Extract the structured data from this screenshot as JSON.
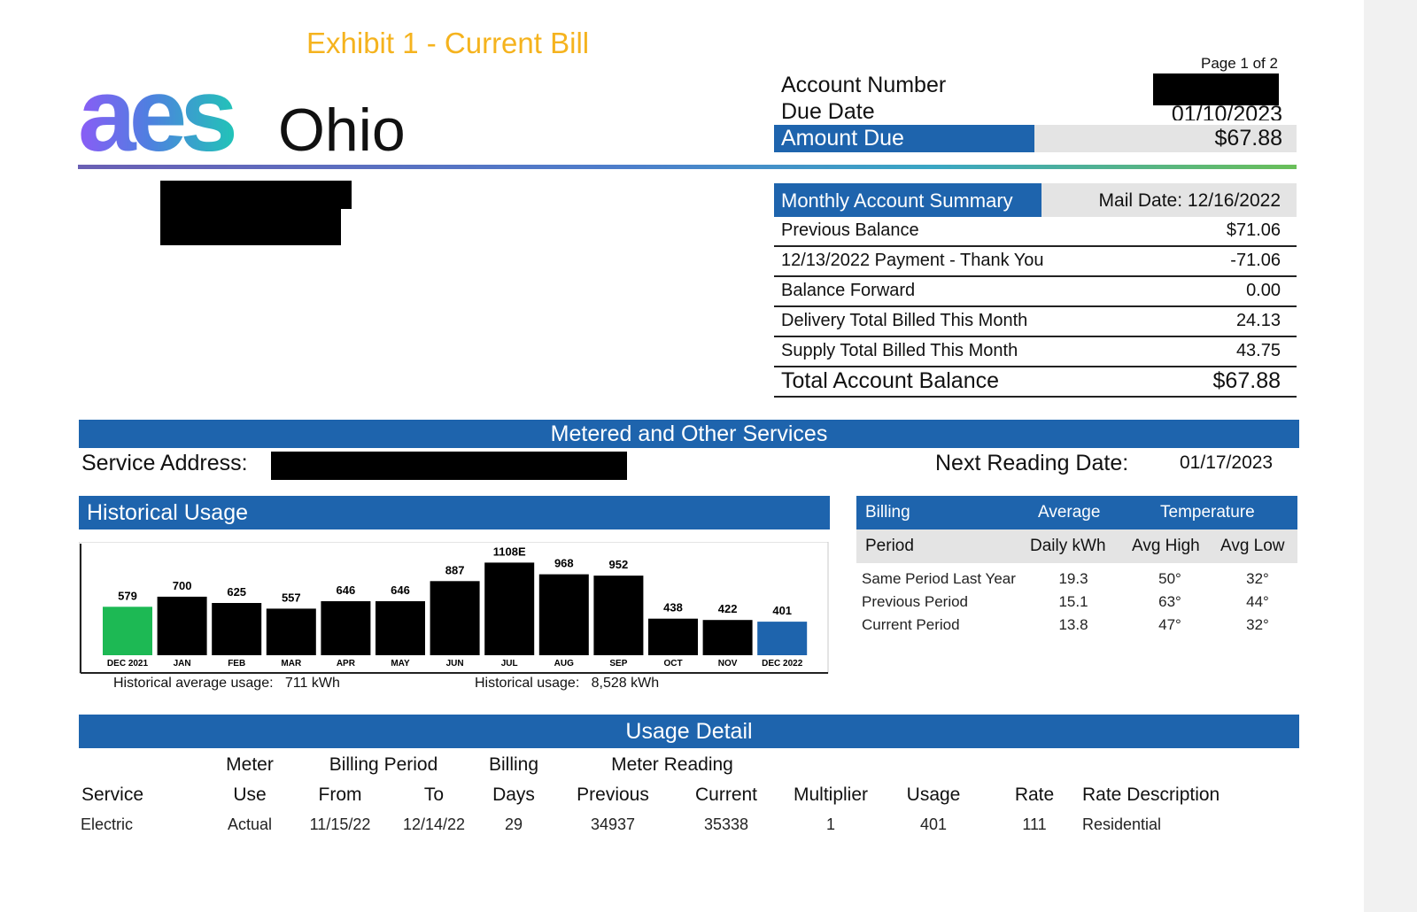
{
  "exhibit_title": "Exhibit 1 - Current Bill",
  "logo": {
    "mark": "aes",
    "region": "Ohio"
  },
  "page_info": "Page 1 of 2",
  "account": {
    "number_label": "Account Number",
    "due_date_label": "Due Date",
    "due_date_value": "01/10/2023",
    "amount_due_label": "Amount Due",
    "amount_due_value": "$67.88"
  },
  "summary": {
    "title": "Monthly Account Summary",
    "mail_date": "Mail Date: 12/16/2022",
    "rows": [
      {
        "label": "Previous Balance",
        "value": "$71.06"
      },
      {
        "label": "12/13/2022 Payment - Thank You",
        "value": "-71.06"
      },
      {
        "label": "Balance Forward",
        "value": "0.00"
      },
      {
        "label": "Delivery Total Billed This Month",
        "value": "24.13"
      },
      {
        "label": "Supply Total Billed This Month",
        "value": "43.75"
      }
    ],
    "total_label": "Total Account Balance",
    "total_value": "$67.88"
  },
  "metered_banner": "Metered and Other Services",
  "service_address_label": "Service Address:",
  "next_reading_label": "Next Reading Date:",
  "next_reading_value": "01/17/2023",
  "historical": {
    "title": "Historical Usage",
    "average_label": "Historical average usage:",
    "average_value": "711 kWh",
    "total_label": "Historical usage:",
    "total_value": "8,528 kWh"
  },
  "chart_data": {
    "type": "bar",
    "categories": [
      "DEC 2021",
      "JAN",
      "FEB",
      "MAR",
      "APR",
      "MAY",
      "JUN",
      "JUL",
      "AUG",
      "SEP",
      "OCT",
      "NOV",
      "DEC 2022"
    ],
    "values": [
      579,
      700,
      625,
      557,
      646,
      646,
      887,
      1108,
      968,
      952,
      438,
      422,
      401
    ],
    "value_labels": [
      "579",
      "700",
      "625",
      "557",
      "646",
      "646",
      "887",
      "1108E",
      "968",
      "952",
      "438",
      "422",
      "401"
    ],
    "colors": [
      "#1db954",
      "#000000",
      "#000000",
      "#000000",
      "#000000",
      "#000000",
      "#000000",
      "#000000",
      "#000000",
      "#000000",
      "#000000",
      "#000000",
      "#1e64ad"
    ],
    "ylim": [
      0,
      1250
    ]
  },
  "billing_table": {
    "header1": [
      "Billing",
      "Average",
      "Temperature"
    ],
    "header2": [
      "Period",
      "Daily kWh",
      "Avg High",
      "Avg Low"
    ],
    "rows": [
      [
        "Same Period Last Year",
        "19.3",
        "50°",
        "32°"
      ],
      [
        "Previous Period",
        "15.1",
        "63°",
        "44°"
      ],
      [
        "Current Period",
        "13.8",
        "47°",
        "32°"
      ]
    ]
  },
  "usage_detail": {
    "banner": "Usage Detail",
    "header_top": {
      "meter": "Meter",
      "billing_period": "Billing Period",
      "billing": "Billing",
      "meter_reading": "Meter Reading"
    },
    "header_bottom": [
      "Service",
      "Use",
      "From",
      "To",
      "Days",
      "Previous",
      "Current",
      "Multiplier",
      "Usage",
      "Rate",
      "Rate Description"
    ],
    "row": [
      "Electric",
      "Actual",
      "11/15/22",
      "12/14/22",
      "29",
      "34937",
      "35338",
      "1",
      "401",
      "111",
      "Residential"
    ]
  },
  "colors": {
    "brand_blue": "#1e64ad",
    "exhibit_gold": "#f5b31e",
    "header_grey": "#e4e4e4"
  }
}
